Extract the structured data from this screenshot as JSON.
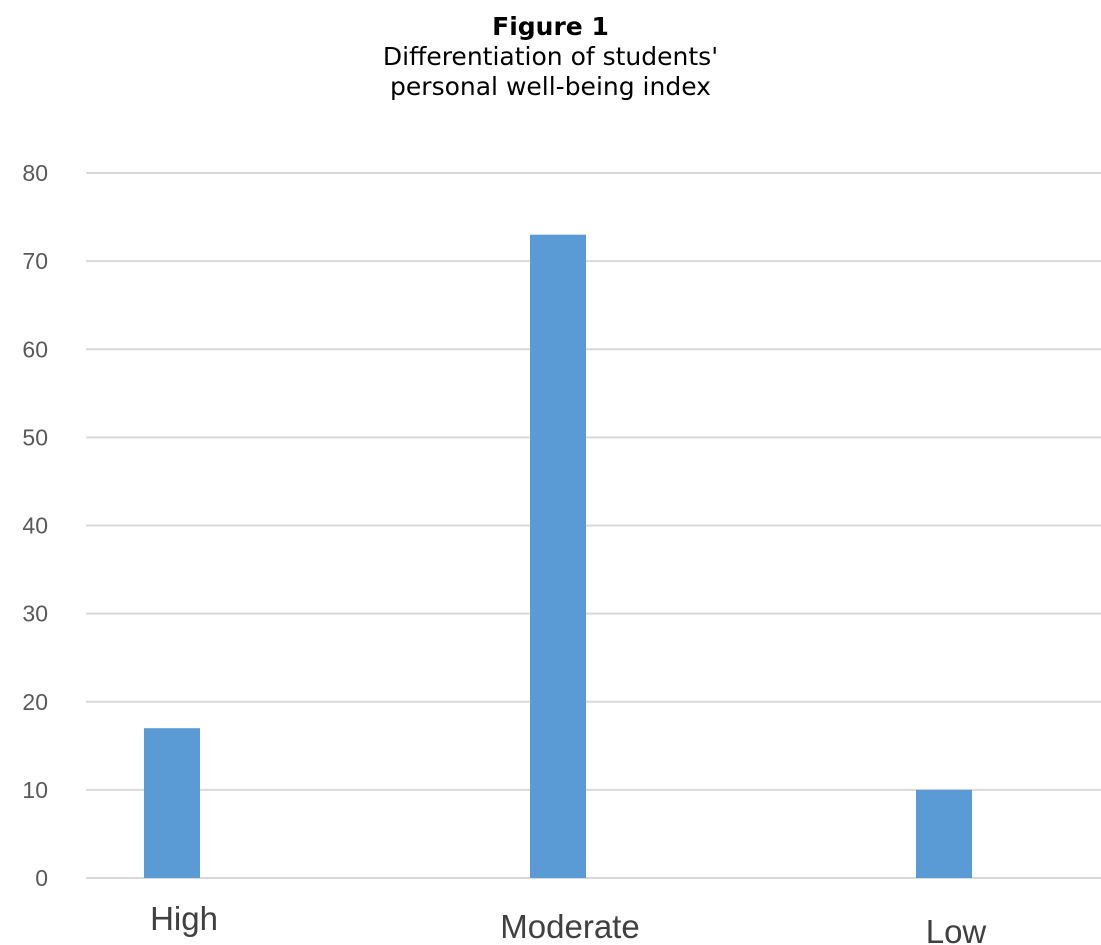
{
  "figure": {
    "label": "Figure 1",
    "caption_line1": "Differentiation of students'",
    "caption_line2": "personal well-being index"
  },
  "colors": {
    "bar": "#5b9bd5",
    "grid": "#d9d9d9",
    "tick_text": "#595959",
    "category_text": "#404040"
  },
  "chart_data": {
    "type": "bar",
    "title": "",
    "categories": [
      "High",
      "Moderate",
      "Low"
    ],
    "values": [
      17,
      73,
      10
    ],
    "xlabel": "",
    "ylabel": "",
    "ylim": [
      0,
      80
    ],
    "yticks": [
      0,
      10,
      20,
      30,
      40,
      50,
      60,
      70,
      80
    ],
    "grid": true,
    "legend": "none"
  }
}
